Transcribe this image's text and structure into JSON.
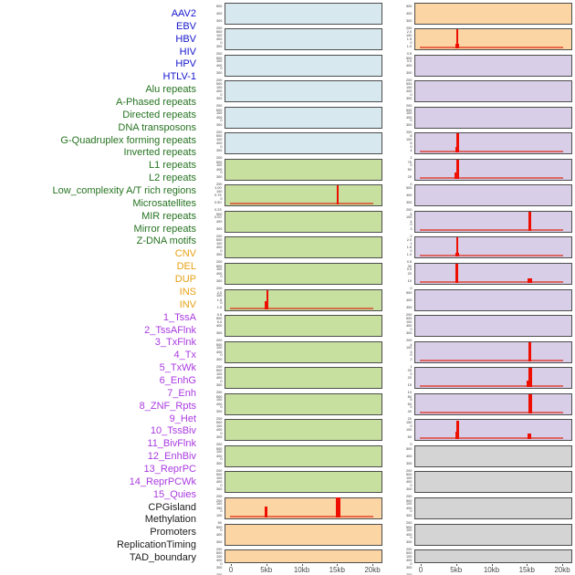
{
  "figure": {
    "description": "Density profiles of 44 genomic features across a 20kb window, two panel columns",
    "x_axis": {
      "tick_labels": [
        "0",
        "5kb",
        "10kb",
        "15kb",
        "20kb"
      ],
      "tick_kb": [
        0,
        5,
        10,
        15,
        20
      ]
    }
  },
  "colors": {
    "spike": "#ee0f00",
    "baseline": "rgba(220,40,20,0.62)",
    "panel_border": "#4d4d4d",
    "axis_text": "#4a4a4a",
    "ytick_text": "#3a3a3a"
  },
  "categories": {
    "virus": {
      "label_color": "#1414cc",
      "panel_color": "#d7e8ef"
    },
    "repeat": {
      "label_color": "#267321",
      "panel_color": "#c7df9f"
    },
    "sv": {
      "label_color": "#e7a013",
      "panel_color": "#fcd5a4"
    },
    "chromhmm": {
      "label_color": "#a93ae0",
      "panel_color": "#d9cee7"
    },
    "other": {
      "label_color": "#1a1a1a",
      "panel_color": "#d4d4d4"
    }
  },
  "tracks": [
    {
      "name": "AAV2",
      "category": "virus",
      "column": "left",
      "yticks": [
        "500",
        "400",
        "300",
        "200",
        "100",
        "0"
      ],
      "baseline": false,
      "spikes": []
    },
    {
      "name": "EBV",
      "category": "virus",
      "column": "left",
      "yticks": [
        "500",
        "400",
        "300",
        "200",
        "100",
        "0"
      ],
      "baseline": false,
      "spikes": []
    },
    {
      "name": "HBV",
      "category": "virus",
      "column": "left",
      "yticks": [
        "500",
        "400",
        "300",
        "200",
        "100",
        "0"
      ],
      "baseline": false,
      "spikes": []
    },
    {
      "name": "HIV",
      "category": "virus",
      "column": "left",
      "yticks": [
        "500",
        "400",
        "300",
        "200",
        "100",
        "0"
      ],
      "baseline": false,
      "spikes": []
    },
    {
      "name": "HPV",
      "category": "virus",
      "column": "left",
      "yticks": [
        "500",
        "400",
        "300",
        "200",
        "100",
        "0"
      ],
      "baseline": false,
      "spikes": []
    },
    {
      "name": "HTLV-1",
      "category": "virus",
      "column": "left",
      "yticks": [
        "500",
        "400",
        "300",
        "200",
        "100",
        "0"
      ],
      "baseline": false,
      "spikes": []
    },
    {
      "name": "Alu repeats",
      "category": "repeat",
      "column": "left",
      "yticks": [
        "500",
        "400",
        "300",
        "200",
        "100",
        "0"
      ],
      "baseline": false,
      "spikes": []
    },
    {
      "name": "A-Phased repeats",
      "category": "repeat",
      "column": "left",
      "yticks": [
        "1.00",
        "0.75",
        "0.50",
        "0.25",
        "0.00"
      ],
      "baseline": true,
      "spikes": [
        {
          "kb": 15.0,
          "w": 2,
          "f": 1.0
        }
      ]
    },
    {
      "name": "Directed repeats",
      "category": "repeat",
      "column": "left",
      "yticks": [
        "500",
        "400",
        "300",
        "200",
        "100",
        "0"
      ],
      "baseline": false,
      "spikes": []
    },
    {
      "name": "DNA transposons",
      "category": "repeat",
      "column": "left",
      "yticks": [
        "500",
        "400",
        "300",
        "200",
        "100",
        "0"
      ],
      "baseline": false,
      "spikes": []
    },
    {
      "name": "G-Quadruplex forming repeats",
      "category": "repeat",
      "column": "left",
      "yticks": [
        "500",
        "400",
        "300",
        "200",
        "100",
        "0"
      ],
      "baseline": false,
      "spikes": []
    },
    {
      "name": "Inverted repeats",
      "category": "repeat",
      "column": "left",
      "yticks": [
        "2.0",
        "1.5",
        "1.0",
        "0.5",
        "0.0"
      ],
      "baseline": true,
      "spikes": [
        {
          "kb": 4.8,
          "w": 2,
          "f": 0.45
        },
        {
          "kb": 5.05,
          "w": 2,
          "f": 1.0
        }
      ]
    },
    {
      "name": "L1 repeats",
      "category": "repeat",
      "column": "left",
      "yticks": [
        "500",
        "400",
        "300",
        "200",
        "100",
        "0"
      ],
      "baseline": false,
      "spikes": []
    },
    {
      "name": "L2 repeats",
      "category": "repeat",
      "column": "left",
      "yticks": [
        "500",
        "400",
        "300",
        "200",
        "100",
        "0"
      ],
      "baseline": false,
      "spikes": []
    },
    {
      "name": "Low_complexity A/T rich regions",
      "category": "repeat",
      "column": "left",
      "yticks": [
        "500",
        "400",
        "300",
        "200",
        "100",
        "0"
      ],
      "baseline": false,
      "spikes": []
    },
    {
      "name": "Microsatellites",
      "category": "repeat",
      "column": "left",
      "yticks": [
        "500",
        "400",
        "300",
        "200",
        "100",
        "0"
      ],
      "baseline": false,
      "spikes": []
    },
    {
      "name": "MIR repeats",
      "category": "repeat",
      "column": "left",
      "yticks": [
        "500",
        "400",
        "300",
        "200",
        "100",
        "0"
      ],
      "baseline": false,
      "spikes": []
    },
    {
      "name": "Mirror repeats",
      "category": "repeat",
      "column": "left",
      "yticks": [
        "500",
        "400",
        "300",
        "200",
        "100",
        "0"
      ],
      "baseline": false,
      "spikes": []
    },
    {
      "name": "Z-DNA motifs",
      "category": "repeat",
      "column": "left",
      "yticks": [
        "500",
        "400",
        "300",
        "200",
        "100",
        "0"
      ],
      "baseline": false,
      "spikes": []
    },
    {
      "name": "CNV",
      "category": "sv",
      "column": "left",
      "yticks": [
        "200",
        "150",
        "100",
        "50",
        "0"
      ],
      "baseline": true,
      "spikes": [
        {
          "kb": 4.9,
          "w": 3,
          "f": 0.58
        },
        {
          "kb": 15.05,
          "w": 5,
          "f": 1.03
        }
      ]
    },
    {
      "name": "DEL",
      "category": "sv",
      "column": "left",
      "yticks": [
        "500",
        "400",
        "300",
        "200",
        "100",
        "0"
      ],
      "baseline": false,
      "spikes": []
    },
    {
      "name": "DUP",
      "category": "sv",
      "column": "left",
      "yticks": [
        "500",
        "400",
        "300",
        "200",
        "100",
        "0"
      ],
      "baseline": false,
      "spikes": []
    },
    {
      "name": "INS",
      "category": "sv",
      "column": "right",
      "yticks": [
        "500",
        "400",
        "300",
        "200",
        "100",
        "0"
      ],
      "baseline": false,
      "spikes": []
    },
    {
      "name": "INV",
      "category": "sv",
      "column": "right",
      "yticks": [
        "2.0",
        "1.5",
        "1.0",
        "0.5",
        "0.0"
      ],
      "baseline": true,
      "spikes": [
        {
          "kb": 5.0,
          "w": 4,
          "f": 0.25
        },
        {
          "kb": 5.0,
          "w": 2,
          "f": 1.0
        }
      ]
    },
    {
      "name": "1_TssA",
      "category": "chromhmm",
      "column": "right",
      "yticks": [
        "500",
        "400",
        "300",
        "200",
        "100",
        "0"
      ],
      "baseline": false,
      "spikes": []
    },
    {
      "name": "2_TssAFlnk",
      "category": "chromhmm",
      "column": "right",
      "yticks": [
        "500",
        "400",
        "300",
        "200",
        "100",
        "0"
      ],
      "baseline": false,
      "spikes": []
    },
    {
      "name": "3_TxFlnk",
      "category": "chromhmm",
      "column": "right",
      "yticks": [
        "500",
        "400",
        "300",
        "200",
        "100",
        "0"
      ],
      "baseline": false,
      "spikes": []
    },
    {
      "name": "4_Tx",
      "category": "chromhmm",
      "column": "right",
      "yticks": [
        "8",
        "6",
        "4",
        "2",
        "0"
      ],
      "baseline": true,
      "spikes": [
        {
          "kb": 4.85,
          "w": 2,
          "f": 0.3
        },
        {
          "kb": 5.05,
          "w": 3,
          "f": 1.0
        }
      ]
    },
    {
      "name": "5_TxWk",
      "category": "chromhmm",
      "column": "right",
      "yticks": [
        "75",
        "50",
        "25",
        "0"
      ],
      "baseline": true,
      "spikes": [
        {
          "kb": 4.75,
          "w": 2,
          "f": 0.35
        },
        {
          "kb": 5.05,
          "w": 3,
          "f": 1.0
        }
      ]
    },
    {
      "name": "6_EnhG",
      "category": "chromhmm",
      "column": "right",
      "yticks": [
        "500",
        "400",
        "300",
        "200",
        "100",
        "0"
      ],
      "baseline": false,
      "spikes": []
    },
    {
      "name": "7_Enh",
      "category": "chromhmm",
      "column": "right",
      "yticks": [
        "5",
        "4",
        "3",
        "2",
        "1",
        "0"
      ],
      "baseline": true,
      "spikes": [
        {
          "kb": 15.35,
          "w": 3,
          "f": 1.0
        }
      ]
    },
    {
      "name": "8_ZNF_Rpts",
      "category": "chromhmm",
      "column": "right",
      "yticks": [
        "2.0",
        "1.5",
        "1.0",
        "0.5",
        "0.0"
      ],
      "baseline": true,
      "spikes": [
        {
          "kb": 5.0,
          "w": 4,
          "f": 0.2
        },
        {
          "kb": 5.05,
          "w": 2,
          "f": 1.0
        }
      ]
    },
    {
      "name": "9_Het",
      "category": "chromhmm",
      "column": "right",
      "yticks": [
        "30",
        "20",
        "10",
        "0"
      ],
      "baseline": true,
      "spikes": [
        {
          "kb": 5.0,
          "w": 3,
          "f": 1.0
        },
        {
          "kb": 15.25,
          "w": 5,
          "f": 0.22
        }
      ]
    },
    {
      "name": "10_TssBiv",
      "category": "chromhmm",
      "column": "right",
      "yticks": [
        "500",
        "400",
        "300",
        "200",
        "100",
        "0"
      ],
      "baseline": false,
      "spikes": []
    },
    {
      "name": "11_BivFlnk",
      "category": "chromhmm",
      "column": "right",
      "yticks": [
        "500",
        "400",
        "300",
        "200",
        "100",
        "0"
      ],
      "baseline": false,
      "spikes": []
    },
    {
      "name": "12_EnhBiv",
      "category": "chromhmm",
      "column": "right",
      "yticks": [
        "4",
        "3",
        "2",
        "1",
        "0"
      ],
      "baseline": true,
      "spikes": [
        {
          "kb": 15.35,
          "w": 3,
          "f": 1.0
        }
      ]
    },
    {
      "name": "13_ReprPC",
      "category": "chromhmm",
      "column": "right",
      "yticks": [
        "25",
        "20",
        "15",
        "10",
        "5",
        "0"
      ],
      "baseline": true,
      "spikes": [
        {
          "kb": 15.0,
          "w": 2,
          "f": 0.35
        },
        {
          "kb": 15.3,
          "w": 4,
          "f": 1.0
        }
      ]
    },
    {
      "name": "14_ReprPCWk",
      "category": "chromhmm",
      "column": "right",
      "yticks": [
        "80",
        "60",
        "40",
        "20",
        "0"
      ],
      "baseline": true,
      "spikes": [
        {
          "kb": 15.3,
          "w": 4,
          "f": 1.0
        }
      ]
    },
    {
      "name": "15_Quies",
      "category": "chromhmm",
      "column": "right",
      "yticks": [
        "150",
        "100",
        "50",
        "0"
      ],
      "baseline": true,
      "spikes": [
        {
          "kb": 4.85,
          "w": 2,
          "f": 0.4
        },
        {
          "kb": 5.05,
          "w": 3,
          "f": 0.97
        },
        {
          "kb": 15.2,
          "w": 4,
          "f": 0.28
        }
      ]
    },
    {
      "name": "CPGisland",
      "category": "other",
      "column": "right",
      "yticks": [
        "500",
        "400",
        "300",
        "200",
        "100",
        "0"
      ],
      "baseline": false,
      "spikes": []
    },
    {
      "name": "Methylation",
      "category": "other",
      "column": "right",
      "yticks": [
        "500",
        "400",
        "300",
        "200",
        "100",
        "0"
      ],
      "baseline": false,
      "spikes": []
    },
    {
      "name": "Promoters",
      "category": "other",
      "column": "right",
      "yticks": [
        "500",
        "400",
        "300",
        "200",
        "100",
        "0"
      ],
      "baseline": false,
      "spikes": []
    },
    {
      "name": "ReplicationTiming",
      "category": "other",
      "column": "right",
      "yticks": [
        "500",
        "400",
        "300",
        "200",
        "100",
        "0"
      ],
      "baseline": false,
      "spikes": []
    },
    {
      "name": "TAD_boundary",
      "category": "other",
      "column": "right",
      "yticks": [
        "500",
        "400",
        "300",
        "200",
        "100",
        "0"
      ],
      "baseline": false,
      "spikes": []
    }
  ],
  "chart_data": {
    "type": "area",
    "title": "",
    "xlabel": "",
    "ylabel": "",
    "x_ticks": [
      "0",
      "5kb",
      "10kb",
      "15kb",
      "20kb"
    ],
    "x_range_kb": [
      0,
      20
    ],
    "legend_position": "none",
    "grid": false,
    "series": [
      {
        "name": "AAV2",
        "y_max": 500,
        "peaks": []
      },
      {
        "name": "EBV",
        "y_max": 500,
        "peaks": []
      },
      {
        "name": "HBV",
        "y_max": 500,
        "peaks": []
      },
      {
        "name": "HIV",
        "y_max": 500,
        "peaks": []
      },
      {
        "name": "HPV",
        "y_max": 500,
        "peaks": []
      },
      {
        "name": "HTLV-1",
        "y_max": 500,
        "peaks": []
      },
      {
        "name": "Alu repeats",
        "y_max": 500,
        "peaks": []
      },
      {
        "name": "A-Phased repeats",
        "y_max": 1.0,
        "peaks": [
          {
            "x_kb": 15,
            "y": 1.0
          }
        ]
      },
      {
        "name": "Directed repeats",
        "y_max": 500,
        "peaks": []
      },
      {
        "name": "DNA transposons",
        "y_max": 500,
        "peaks": []
      },
      {
        "name": "G-Quadruplex forming repeats",
        "y_max": 500,
        "peaks": []
      },
      {
        "name": "Inverted repeats",
        "y_max": 2.0,
        "peaks": [
          {
            "x_kb": 5,
            "y": 2.0
          }
        ]
      },
      {
        "name": "L1 repeats",
        "y_max": 500,
        "peaks": []
      },
      {
        "name": "L2 repeats",
        "y_max": 500,
        "peaks": []
      },
      {
        "name": "Low_complexity A/T rich regions",
        "y_max": 500,
        "peaks": []
      },
      {
        "name": "Microsatellites",
        "y_max": 500,
        "peaks": []
      },
      {
        "name": "MIR repeats",
        "y_max": 500,
        "peaks": []
      },
      {
        "name": "Mirror repeats",
        "y_max": 500,
        "peaks": []
      },
      {
        "name": "Z-DNA motifs",
        "y_max": 500,
        "peaks": []
      },
      {
        "name": "CNV",
        "y_max": 200,
        "peaks": [
          {
            "x_kb": 5,
            "y": 115
          },
          {
            "x_kb": 15,
            "y": 210
          }
        ]
      },
      {
        "name": "DEL",
        "y_max": 500,
        "peaks": []
      },
      {
        "name": "DUP",
        "y_max": 500,
        "peaks": []
      },
      {
        "name": "INS",
        "y_max": 500,
        "peaks": []
      },
      {
        "name": "INV",
        "y_max": 2.0,
        "peaks": [
          {
            "x_kb": 5,
            "y": 2.0
          }
        ]
      },
      {
        "name": "1_TssA",
        "y_max": 500,
        "peaks": []
      },
      {
        "name": "2_TssAFlnk",
        "y_max": 500,
        "peaks": []
      },
      {
        "name": "3_TxFlnk",
        "y_max": 500,
        "peaks": []
      },
      {
        "name": "4_Tx",
        "y_max": 8,
        "peaks": [
          {
            "x_kb": 5,
            "y": 8
          }
        ]
      },
      {
        "name": "5_TxWk",
        "y_max": 75,
        "peaks": [
          {
            "x_kb": 5,
            "y": 78
          }
        ]
      },
      {
        "name": "6_EnhG",
        "y_max": 500,
        "peaks": []
      },
      {
        "name": "7_Enh",
        "y_max": 5,
        "peaks": [
          {
            "x_kb": 15,
            "y": 5
          }
        ]
      },
      {
        "name": "8_ZNF_Rpts",
        "y_max": 2.0,
        "peaks": [
          {
            "x_kb": 5,
            "y": 2.0
          }
        ]
      },
      {
        "name": "9_Het",
        "y_max": 30,
        "peaks": [
          {
            "x_kb": 5,
            "y": 30
          },
          {
            "x_kb": 15,
            "y": 6
          }
        ]
      },
      {
        "name": "10_TssBiv",
        "y_max": 500,
        "peaks": []
      },
      {
        "name": "11_BivFlnk",
        "y_max": 500,
        "peaks": []
      },
      {
        "name": "12_EnhBiv",
        "y_max": 4,
        "peaks": [
          {
            "x_kb": 15,
            "y": 4
          }
        ]
      },
      {
        "name": "13_ReprPC",
        "y_max": 25,
        "peaks": [
          {
            "x_kb": 15,
            "y": 25
          }
        ]
      },
      {
        "name": "14_ReprPCWk",
        "y_max": 80,
        "peaks": [
          {
            "x_kb": 15,
            "y": 82
          }
        ]
      },
      {
        "name": "15_Quies",
        "y_max": 150,
        "peaks": [
          {
            "x_kb": 5,
            "y": 145
          },
          {
            "x_kb": 15,
            "y": 40
          }
        ]
      },
      {
        "name": "CPGisland",
        "y_max": 500,
        "peaks": []
      },
      {
        "name": "Methylation",
        "y_max": 500,
        "peaks": []
      },
      {
        "name": "Promoters",
        "y_max": 500,
        "peaks": []
      },
      {
        "name": "ReplicationTiming",
        "y_max": 500,
        "peaks": []
      },
      {
        "name": "TAD_boundary",
        "y_max": 500,
        "peaks": []
      }
    ]
  }
}
